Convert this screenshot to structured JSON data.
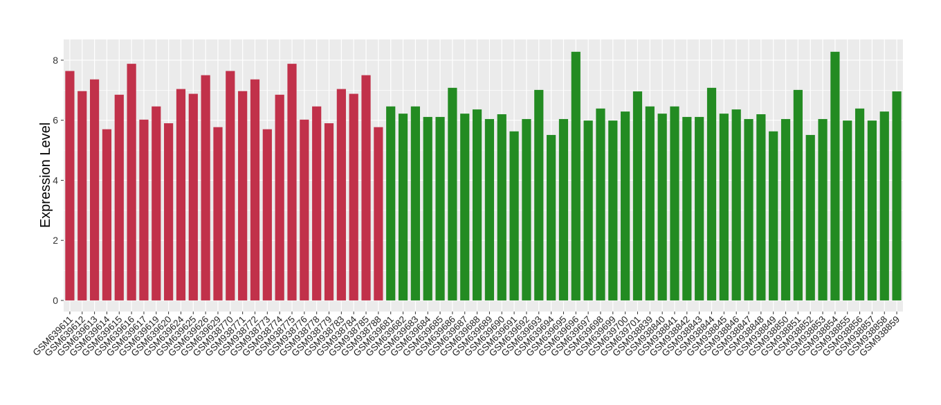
{
  "chart_data": {
    "type": "bar",
    "title": "",
    "xlabel": "",
    "ylabel": "Expression Level",
    "ylim": [
      -0.37,
      8.69
    ],
    "yticks": [
      0,
      2,
      4,
      6,
      8
    ],
    "grid": true,
    "legend": "none",
    "colors": {
      "group1": "#C1314A",
      "group2": "#238B22",
      "panel": "#EBEBEB",
      "grid": "#FFFFFF"
    },
    "categories": [
      "GSM639611",
      "GSM639612",
      "GSM639613",
      "GSM639614",
      "GSM639615",
      "GSM639616",
      "GSM639617",
      "GSM639619",
      "GSM639620",
      "GSM639624",
      "GSM639625",
      "GSM639626",
      "GSM639629",
      "GSM938770",
      "GSM938771",
      "GSM938772",
      "GSM938773",
      "GSM938774",
      "GSM938775",
      "GSM938776",
      "GSM938778",
      "GSM938779",
      "GSM938783",
      "GSM938784",
      "GSM938785",
      "GSM938788",
      "GSM639681",
      "GSM639682",
      "GSM639683",
      "GSM639684",
      "GSM639685",
      "GSM639686",
      "GSM639687",
      "GSM639688",
      "GSM639689",
      "GSM639690",
      "GSM639691",
      "GSM639692",
      "GSM639693",
      "GSM639694",
      "GSM639695",
      "GSM639696",
      "GSM639697",
      "GSM639698",
      "GSM639699",
      "GSM639700",
      "GSM639701",
      "GSM938839",
      "GSM938840",
      "GSM938841",
      "GSM938842",
      "GSM938843",
      "GSM938844",
      "GSM938845",
      "GSM938846",
      "GSM938847",
      "GSM938848",
      "GSM938849",
      "GSM938850",
      "GSM938851",
      "GSM938852",
      "GSM938853",
      "GSM938854",
      "GSM938855",
      "GSM938856",
      "GSM938857",
      "GSM938858",
      "GSM938859"
    ],
    "values": [
      7.64,
      6.97,
      7.36,
      5.7,
      6.85,
      7.88,
      6.02,
      6.46,
      5.9,
      7.04,
      6.88,
      7.5,
      5.77,
      7.64,
      6.97,
      7.36,
      5.7,
      6.85,
      7.88,
      6.02,
      6.46,
      5.9,
      7.04,
      6.88,
      7.5,
      5.77,
      6.46,
      6.22,
      6.46,
      6.11,
      6.11,
      7.08,
      6.22,
      6.36,
      6.04,
      6.2,
      5.63,
      6.04,
      7.01,
      5.51,
      6.04,
      8.28,
      5.99,
      6.39,
      5.99,
      6.29,
      6.96,
      6.46,
      6.22,
      6.46,
      6.11,
      6.11,
      7.08,
      6.22,
      6.36,
      6.04,
      6.2,
      5.63,
      6.04,
      7.01,
      5.51,
      6.04,
      8.28,
      5.99,
      6.39,
      5.99,
      6.29,
      6.96
    ],
    "groups": [
      1,
      1,
      1,
      1,
      1,
      1,
      1,
      1,
      1,
      1,
      1,
      1,
      1,
      1,
      1,
      1,
      1,
      1,
      1,
      1,
      1,
      1,
      1,
      1,
      1,
      1,
      2,
      2,
      2,
      2,
      2,
      2,
      2,
      2,
      2,
      2,
      2,
      2,
      2,
      2,
      2,
      2,
      2,
      2,
      2,
      2,
      2,
      2,
      2,
      2,
      2,
      2,
      2,
      2,
      2,
      2,
      2,
      2,
      2,
      2,
      2,
      2,
      2,
      2,
      2,
      2,
      2,
      2
    ]
  }
}
